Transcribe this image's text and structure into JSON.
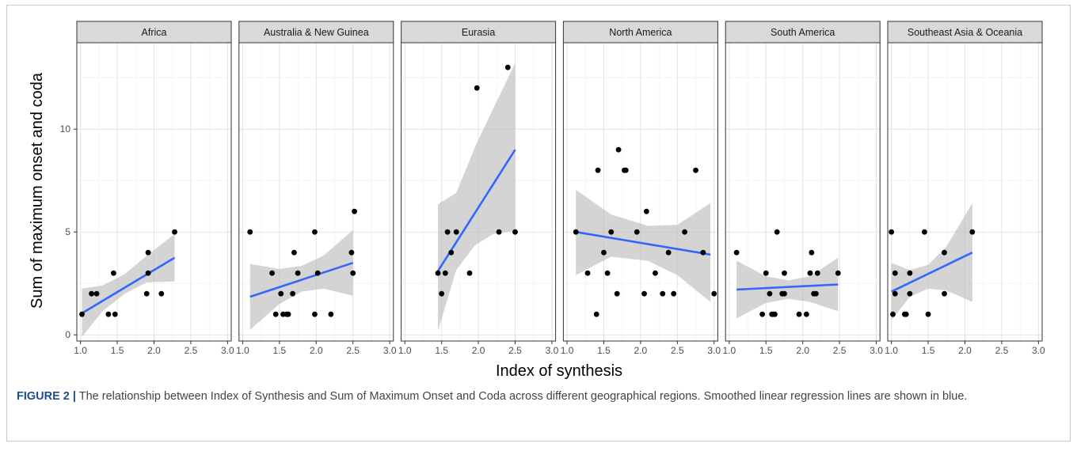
{
  "figure": {
    "caption_label": "FIGURE 2 |",
    "caption_text": "The relationship between Index of Synthesis and Sum of Maximum Onset and Coda across different geographical regions. Smoothed linear regression lines are shown in blue."
  },
  "chart_data": {
    "type": "scatter",
    "xlabel": "Index of synthesis",
    "ylabel": "Sum of maximum onset and coda",
    "xlim": [
      0.95,
      3.05
    ],
    "ylim": [
      -0.3,
      14.2
    ],
    "xticks": [
      1.0,
      1.5,
      2.0,
      2.5,
      3.0
    ],
    "xtick_labels": [
      "1.0",
      "1.5",
      "2.0",
      "2.5",
      "3.0"
    ],
    "yticks": [
      0,
      5,
      10
    ],
    "ytick_labels": [
      "0",
      "5",
      "10"
    ],
    "grid": true,
    "regression_color": "#3366ff",
    "ribbon_color": "#bdbdbd",
    "point_color": "#000000",
    "strip_color": "#d9d9d9",
    "panels": [
      {
        "name": "Africa",
        "points": [
          [
            1.02,
            1
          ],
          [
            1.15,
            2
          ],
          [
            1.22,
            2
          ],
          [
            1.38,
            1
          ],
          [
            1.45,
            3
          ],
          [
            1.47,
            1
          ],
          [
            1.9,
            2
          ],
          [
            1.92,
            3
          ],
          [
            1.92,
            4
          ],
          [
            2.1,
            2
          ],
          [
            2.28,
            5
          ]
        ],
        "fit": {
          "x": [
            1.02,
            2.28
          ],
          "y": [
            1.05,
            3.75
          ]
        },
        "ribbon": {
          "x": [
            1.02,
            1.3,
            1.6,
            1.9,
            2.28
          ],
          "lower": [
            -0.1,
            1.15,
            2.0,
            2.55,
            2.6
          ],
          "upper": [
            2.25,
            2.4,
            2.95,
            3.85,
            4.9
          ]
        }
      },
      {
        "name": "Australia & New Guinea",
        "points": [
          [
            1.1,
            5
          ],
          [
            1.4,
            3
          ],
          [
            1.45,
            1
          ],
          [
            1.52,
            2
          ],
          [
            1.55,
            1
          ],
          [
            1.6,
            1
          ],
          [
            1.62,
            1
          ],
          [
            1.68,
            2
          ],
          [
            1.7,
            4
          ],
          [
            1.75,
            3
          ],
          [
            1.98,
            5
          ],
          [
            1.98,
            1
          ],
          [
            2.02,
            3
          ],
          [
            2.2,
            1
          ],
          [
            2.48,
            4
          ],
          [
            2.5,
            3
          ],
          [
            2.52,
            6
          ]
        ],
        "fit": {
          "x": [
            1.1,
            2.5
          ],
          "y": [
            1.85,
            3.5
          ]
        },
        "ribbon": {
          "x": [
            1.1,
            1.5,
            1.8,
            2.1,
            2.5
          ],
          "lower": [
            0.25,
            1.5,
            2.1,
            2.25,
            1.9
          ],
          "upper": [
            3.45,
            3.2,
            3.35,
            3.85,
            5.1
          ]
        }
      },
      {
        "name": "Eurasia",
        "points": [
          [
            1.45,
            3
          ],
          [
            1.5,
            2
          ],
          [
            1.55,
            3
          ],
          [
            1.58,
            5
          ],
          [
            1.63,
            4
          ],
          [
            1.7,
            5
          ],
          [
            1.88,
            3
          ],
          [
            1.98,
            12
          ],
          [
            2.28,
            5
          ],
          [
            2.4,
            13
          ],
          [
            2.5,
            5
          ]
        ],
        "fit": {
          "x": [
            1.45,
            2.5
          ],
          "y": [
            3.1,
            9.0
          ]
        },
        "ribbon": {
          "x": [
            1.45,
            1.7,
            1.95,
            2.2,
            2.5
          ],
          "lower": [
            0.2,
            3.15,
            4.35,
            4.9,
            5.05
          ],
          "upper": [
            6.35,
            6.9,
            9.1,
            11.0,
            13.2
          ]
        }
      },
      {
        "name": "North America",
        "points": [
          [
            1.12,
            5
          ],
          [
            1.28,
            3
          ],
          [
            1.4,
            1
          ],
          [
            1.42,
            8
          ],
          [
            1.5,
            4
          ],
          [
            1.55,
            3
          ],
          [
            1.6,
            5
          ],
          [
            1.68,
            2
          ],
          [
            1.7,
            9
          ],
          [
            1.78,
            8
          ],
          [
            1.8,
            8
          ],
          [
            1.95,
            5
          ],
          [
            2.05,
            2
          ],
          [
            2.08,
            6
          ],
          [
            2.2,
            3
          ],
          [
            2.3,
            2
          ],
          [
            2.38,
            4
          ],
          [
            2.45,
            2
          ],
          [
            2.6,
            5
          ],
          [
            2.75,
            8
          ],
          [
            2.85,
            4
          ],
          [
            3.0,
            2
          ]
        ],
        "fit": {
          "x": [
            1.12,
            2.95
          ],
          "y": [
            5.0,
            3.9
          ]
        },
        "ribbon": {
          "x": [
            1.12,
            1.6,
            2.1,
            2.5,
            2.95
          ],
          "lower": [
            2.9,
            3.8,
            3.6,
            2.9,
            1.6
          ],
          "upper": [
            7.05,
            5.85,
            5.3,
            5.35,
            6.4
          ]
        }
      },
      {
        "name": "South America",
        "points": [
          [
            1.1,
            4
          ],
          [
            1.45,
            1
          ],
          [
            1.5,
            3
          ],
          [
            1.55,
            2
          ],
          [
            1.58,
            1
          ],
          [
            1.6,
            1
          ],
          [
            1.62,
            1
          ],
          [
            1.65,
            5
          ],
          [
            1.72,
            2
          ],
          [
            1.75,
            3
          ],
          [
            1.75,
            2
          ],
          [
            1.95,
            1
          ],
          [
            2.05,
            1
          ],
          [
            2.1,
            3
          ],
          [
            2.12,
            4
          ],
          [
            2.15,
            2
          ],
          [
            2.18,
            2
          ],
          [
            2.2,
            3
          ],
          [
            2.48,
            3
          ]
        ],
        "fit": {
          "x": [
            1.1,
            2.48
          ],
          "y": [
            2.2,
            2.45
          ]
        },
        "ribbon": {
          "x": [
            1.1,
            1.5,
            1.8,
            2.1,
            2.48
          ],
          "lower": [
            0.8,
            1.55,
            1.75,
            1.6,
            1.15
          ],
          "upper": [
            3.6,
            2.85,
            2.65,
            2.85,
            3.75
          ]
        }
      },
      {
        "name": "Southeast Asia & Oceania",
        "points": [
          [
            1.0,
            5
          ],
          [
            1.02,
            1
          ],
          [
            1.05,
            3
          ],
          [
            1.05,
            2
          ],
          [
            1.18,
            1
          ],
          [
            1.2,
            1
          ],
          [
            1.25,
            2
          ],
          [
            1.25,
            3
          ],
          [
            1.45,
            5
          ],
          [
            1.5,
            1
          ],
          [
            1.72,
            4
          ],
          [
            1.72,
            2
          ],
          [
            2.1,
            5
          ]
        ],
        "fit": {
          "x": [
            1.0,
            2.1
          ],
          "y": [
            2.1,
            4.0
          ]
        },
        "ribbon": {
          "x": [
            1.0,
            1.25,
            1.5,
            1.75,
            2.1
          ],
          "lower": [
            0.7,
            1.85,
            2.25,
            2.15,
            1.6
          ],
          "upper": [
            3.5,
            3.15,
            3.4,
            4.3,
            6.4
          ]
        }
      }
    ]
  }
}
